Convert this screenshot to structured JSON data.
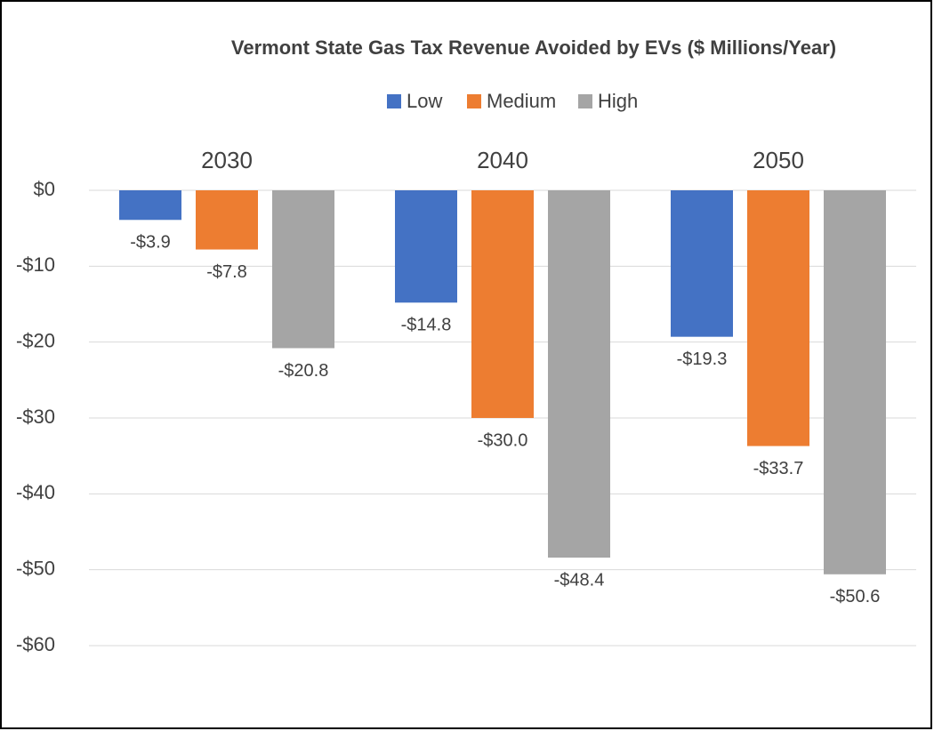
{
  "chart_data": {
    "type": "bar",
    "title": "Vermont State Gas Tax Revenue Avoided by EVs ($ Millions/Year)",
    "categories": [
      "2030",
      "2040",
      "2050"
    ],
    "series": [
      {
        "name": "Low",
        "color": "#4472c4",
        "values": [
          -3.9,
          -14.8,
          -19.3
        ],
        "value_labels": [
          "-$3.9",
          "-$14.8",
          "-$19.3"
        ]
      },
      {
        "name": "Medium",
        "color": "#ed7d31",
        "values": [
          -7.8,
          -30.0,
          -33.7
        ],
        "value_labels": [
          "-$7.8",
          "-$30.0",
          "-$33.7"
        ]
      },
      {
        "name": "High",
        "color": "#a5a5a5",
        "values": [
          -20.8,
          -48.4,
          -50.6
        ],
        "value_labels": [
          "-$20.8",
          "-$48.4",
          "-$50.6"
        ]
      }
    ],
    "ylim": [
      -60,
      0
    ],
    "yticks": [
      {
        "value": 0,
        "label": "$0"
      },
      {
        "value": -10,
        "label": "-$10"
      },
      {
        "value": -20,
        "label": "-$20"
      },
      {
        "value": -30,
        "label": "-$30"
      },
      {
        "value": -40,
        "label": "-$40"
      },
      {
        "value": -50,
        "label": "-$50"
      },
      {
        "value": -60,
        "label": "-$60"
      }
    ],
    "grid": true,
    "legend": "top"
  }
}
